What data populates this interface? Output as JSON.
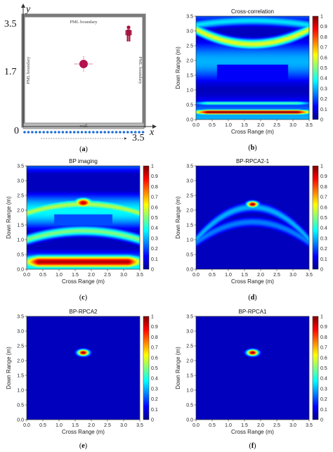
{
  "scene": {
    "pml_top": "PML boundary",
    "pml_left": "PML boundary",
    "pml_right": "PML boundary",
    "wall_label": "wall",
    "y_axis": "y",
    "x_axis": "x",
    "y_tick_top": "3.5",
    "y_tick_mid": "1.7",
    "origin": "0",
    "x_tick_end": "3.5",
    "caption_letter": "a",
    "antenna_count": 32,
    "target_position_m": [
      1.75,
      2.3
    ],
    "person_position_m": [
      3.3,
      3.1
    ]
  },
  "colors": {
    "scene_frame": "#7a7a7a",
    "wall": "#b9b9b9",
    "target": "#b3124e",
    "antenna": "#1e6fd9"
  },
  "chart_data": [
    {
      "id": "b",
      "type": "heatmap",
      "title": "Cross-correlation",
      "xlabel": "Cross Range (m)",
      "ylabel": "Down Range (m)",
      "xlim": [
        0,
        3.5
      ],
      "ylim": [
        0,
        3.5
      ],
      "xticks": [
        "0.0",
        "0.5",
        "1.0",
        "1.5",
        "2.0",
        "2.5",
        "3.0",
        "3.5"
      ],
      "yticks": [
        "0.0",
        "0.5",
        "1.0",
        "1.5",
        "2.0",
        "2.5",
        "3.0",
        "3.5"
      ],
      "colorbar_ticks": [
        "0",
        "0.1",
        "0.2",
        "0.3",
        "0.4",
        "0.5",
        "0.6",
        "0.7",
        "0.8",
        "0.9",
        "1"
      ],
      "features": [
        {
          "kind": "band",
          "y": 0.25,
          "width": 0.12,
          "value": 1.0
        },
        {
          "kind": "band",
          "y": 0.55,
          "width": 0.1,
          "value": 0.45
        },
        {
          "kind": "arc",
          "y_center": 2.55,
          "y_edge": 3.05,
          "value": 0.6
        },
        {
          "kind": "arc",
          "y_center": 3.35,
          "y_edge": 3.2,
          "value": 0.35
        },
        {
          "kind": "blob",
          "x": 1.75,
          "y": 1.6,
          "value": 0.1
        }
      ],
      "caption_letter": "b"
    },
    {
      "id": "c",
      "type": "heatmap",
      "title": "BP imaging",
      "xlabel": "Cross Range (m)",
      "ylabel": "Down Range (m)",
      "xlim": [
        0,
        3.5
      ],
      "ylim": [
        0,
        3.5
      ],
      "xticks": [
        "0.0",
        "0.5",
        "1.0",
        "1.5",
        "2.0",
        "2.5",
        "3.0",
        "3.5"
      ],
      "yticks": [
        "0.0",
        "0.5",
        "1.0",
        "1.5",
        "2.0",
        "2.5",
        "3.0",
        "3.5"
      ],
      "colorbar_ticks": [
        "0",
        "0.1",
        "0.2",
        "0.3",
        "0.4",
        "0.5",
        "0.6",
        "0.7",
        "0.8",
        "0.9",
        "1"
      ],
      "features": [
        {
          "kind": "band",
          "y": 0.25,
          "width": 0.3,
          "value": 0.95
        },
        {
          "kind": "blob",
          "x": 1.75,
          "y": 2.25,
          "value": 0.95
        },
        {
          "kind": "arc",
          "y_center": 2.2,
          "y_edge": 1.9,
          "value": 0.55
        },
        {
          "kind": "arc",
          "y_center": 1.3,
          "y_edge": 1.0,
          "value": 0.5
        },
        {
          "kind": "blob",
          "x": 1.75,
          "y": 2.9,
          "value": 0.1
        }
      ],
      "caption_letter": "c"
    },
    {
      "id": "d",
      "type": "heatmap",
      "title": "BP-RPCA2-1",
      "xlabel": "Cross Range (m)",
      "ylabel": "Down Range (m)",
      "xlim": [
        0,
        3.5
      ],
      "ylim": [
        0,
        3.5
      ],
      "xticks": [
        "0.0",
        "0.5",
        "1.0",
        "1.5",
        "2.0",
        "2.5",
        "3.0",
        "3.5"
      ],
      "yticks": [
        "0.0",
        "0.5",
        "1.0",
        "1.5",
        "2.0",
        "2.5",
        "3.0",
        "3.5"
      ],
      "colorbar_ticks": [
        "0",
        "0.1",
        "0.2",
        "0.3",
        "0.4",
        "0.5",
        "0.6",
        "0.7",
        "0.8",
        "0.9",
        "1"
      ],
      "features": [
        {
          "kind": "blob",
          "x": 1.75,
          "y": 2.2,
          "value": 1.0
        },
        {
          "kind": "arc",
          "y_center": 2.1,
          "y_edge": 1.0,
          "value": 0.3
        },
        {
          "kind": "arc",
          "y_center": 1.6,
          "y_edge": 0.9,
          "value": 0.25
        }
      ],
      "caption_letter": "d"
    },
    {
      "id": "e",
      "type": "heatmap",
      "title": "BP-RPCA2",
      "xlabel": "Cross Range (m)",
      "ylabel": "Down Range (m)",
      "xlim": [
        0,
        3.5
      ],
      "ylim": [
        0,
        3.5
      ],
      "xticks": [
        "0.0",
        "0.5",
        "1.0",
        "1.5",
        "2.0",
        "2.5",
        "3.0",
        "3.5"
      ],
      "yticks": [
        "0.0",
        "0.5",
        "1.0",
        "1.5",
        "2.0",
        "2.5",
        "3.0",
        "3.5"
      ],
      "colorbar_ticks": [
        "0",
        "0.1",
        "0.2",
        "0.3",
        "0.4",
        "0.5",
        "0.6",
        "0.7",
        "0.8",
        "0.9",
        "1"
      ],
      "features": [
        {
          "kind": "blob",
          "x": 1.75,
          "y": 2.27,
          "value": 1.0
        },
        {
          "kind": "arc",
          "y_center": 2.25,
          "y_edge": 0.7,
          "value": 0.08
        }
      ],
      "caption_letter": "e"
    },
    {
      "id": "f",
      "type": "heatmap",
      "title": "BP-RPCA1",
      "xlabel": "Cross Range (m)",
      "ylabel": "Down Range (m)",
      "xlim": [
        0,
        3.5
      ],
      "ylim": [
        0,
        3.5
      ],
      "xticks": [
        "0.0",
        "0.5",
        "1.0",
        "1.5",
        "2.0",
        "2.5",
        "3.0",
        "3.5"
      ],
      "yticks": [
        "0.0",
        "0.5",
        "1.0",
        "1.5",
        "2.0",
        "2.5",
        "3.0",
        "3.5"
      ],
      "colorbar_ticks": [
        "0",
        "0.1",
        "0.2",
        "0.3",
        "0.4",
        "0.5",
        "0.6",
        "0.7",
        "0.8",
        "0.9",
        "1"
      ],
      "features": [
        {
          "kind": "blob",
          "x": 1.75,
          "y": 2.27,
          "value": 1.0
        }
      ],
      "caption_letter": "f"
    }
  ]
}
